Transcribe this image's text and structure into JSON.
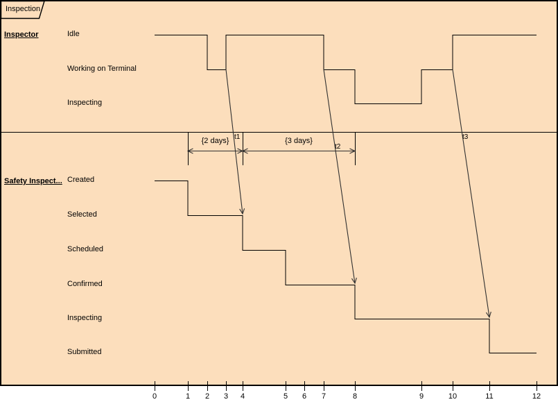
{
  "frame": {
    "title": "Inspection"
  },
  "colors": {
    "background": "#FCDEBC",
    "frame_border": "#000000",
    "timeline": "#000000",
    "message": "#303030",
    "text": "#000000",
    "axis_area": "#FFFFFF"
  },
  "lifelines": [
    {
      "name": "Inspector",
      "states": [
        "Idle",
        "Working on Terminal",
        "Inspecting"
      ],
      "timeline": [
        {
          "state": "Idle",
          "from": 0,
          "to": 2
        },
        {
          "state": "Working on Terminal",
          "from": 2,
          "to": 3
        },
        {
          "state": "Idle",
          "from": 3,
          "to": 7
        },
        {
          "state": "Working on Terminal",
          "from": 7,
          "to": 8
        },
        {
          "state": "Inspecting",
          "from": 8,
          "to": 9
        },
        {
          "state": "Working on Terminal",
          "from": 9,
          "to": 10
        },
        {
          "state": "Idle",
          "from": 10,
          "to": 12
        }
      ]
    },
    {
      "name": "Safety Inspect...",
      "states": [
        "Created",
        "Selected",
        "Scheduled",
        "Confirmed",
        "Inspecting",
        "Submitted"
      ],
      "timeline": [
        {
          "state": "Created",
          "from": 0,
          "to": 1
        },
        {
          "state": "Selected",
          "from": 1,
          "to": 4
        },
        {
          "state": "Scheduled",
          "from": 4,
          "to": 5
        },
        {
          "state": "Confirmed",
          "from": 5,
          "to": 8
        },
        {
          "state": "Inspecting",
          "from": 8,
          "to": 11
        },
        {
          "state": "Submitted",
          "from": 11,
          "to": 12
        }
      ]
    }
  ],
  "messages": [
    {
      "label": "t1",
      "from_lifeline": "Inspector",
      "from_state": "Working on Terminal",
      "from_tick": 3,
      "to_lifeline": "Safety Inspect...",
      "to_state": "Selected",
      "to_tick": 4
    },
    {
      "label": "t2",
      "from_lifeline": "Inspector",
      "from_state": "Working on Terminal",
      "from_tick": 7,
      "to_lifeline": "Safety Inspect...",
      "to_state": "Confirmed",
      "to_tick": 8
    },
    {
      "label": "t3",
      "from_lifeline": "Inspector",
      "from_state": "Working on Terminal",
      "from_tick": 10,
      "to_lifeline": "Safety Inspect...",
      "to_state": "Inspecting",
      "to_tick": 11
    }
  ],
  "constraints": [
    {
      "label": "{2 days}",
      "from_tick": 1,
      "to_tick": 4
    },
    {
      "label": "{3 days}",
      "from_tick": 4,
      "to_tick": 8
    }
  ],
  "time_axis": {
    "ticks": [
      "0",
      "1",
      "2",
      "3",
      "4",
      "5",
      "6",
      "7",
      "8",
      "9",
      "10",
      "11",
      "12"
    ]
  }
}
